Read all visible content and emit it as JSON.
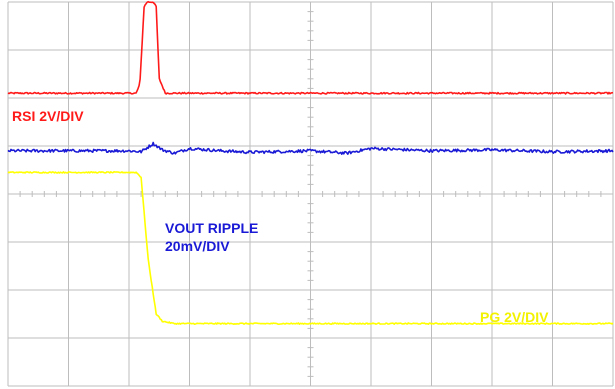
{
  "chart_data": {
    "type": "line",
    "title": "",
    "xlabel": "",
    "ylabel": "",
    "grid": true,
    "grid_divisions": {
      "x": 10,
      "y": 8
    },
    "xlim": [
      0,
      10
    ],
    "ylim": [
      0,
      8
    ],
    "series": [
      {
        "name": "RSI 2V/DIV",
        "color": "#ff1a1a",
        "noise": 0.015,
        "x": [
          0,
          2.12,
          2.18,
          2.25,
          2.3,
          2.4,
          2.45,
          2.5,
          2.6,
          2.75,
          10
        ],
        "y": [
          6.1,
          6.1,
          6.3,
          7.9,
          8.0,
          8.0,
          7.9,
          6.4,
          6.1,
          6.1,
          6.1
        ]
      },
      {
        "name": "VOUT RIPPLE 20mV/DIV",
        "color": "#1a1ad6",
        "noise": 0.03,
        "x": [
          0,
          2.0,
          2.2,
          2.4,
          2.55,
          2.75,
          3.0,
          3.5,
          4.0,
          5.0,
          5.6,
          6.0,
          7.0,
          8.0,
          9.0,
          10
        ],
        "y": [
          4.9,
          4.9,
          4.88,
          5.05,
          4.92,
          4.85,
          4.95,
          4.9,
          4.87,
          4.9,
          4.85,
          4.95,
          4.9,
          4.92,
          4.88,
          4.9
        ],
        "label_lines": [
          "VOUT RIPPLE",
          "20mV/DIV"
        ]
      },
      {
        "name": "PG 2V/DIV",
        "color": "#ffff00",
        "noise": 0.012,
        "x": [
          0,
          2.12,
          2.2,
          2.32,
          2.45,
          2.55,
          2.75,
          2.9,
          10
        ],
        "y": [
          4.45,
          4.45,
          4.35,
          2.6,
          1.5,
          1.35,
          1.3,
          1.3,
          1.3
        ]
      }
    ]
  },
  "labels": {
    "rsi": "RSI 2V/DIV",
    "vout_line1": "VOUT RIPPLE",
    "vout_line2": "20mV/DIV",
    "pg": "PG 2V/DIV"
  },
  "colors": {
    "rsi": "#ff1a1a",
    "vout": "#1a1ad6",
    "pg": "#f5f500",
    "grid": "#bdbdbd"
  }
}
